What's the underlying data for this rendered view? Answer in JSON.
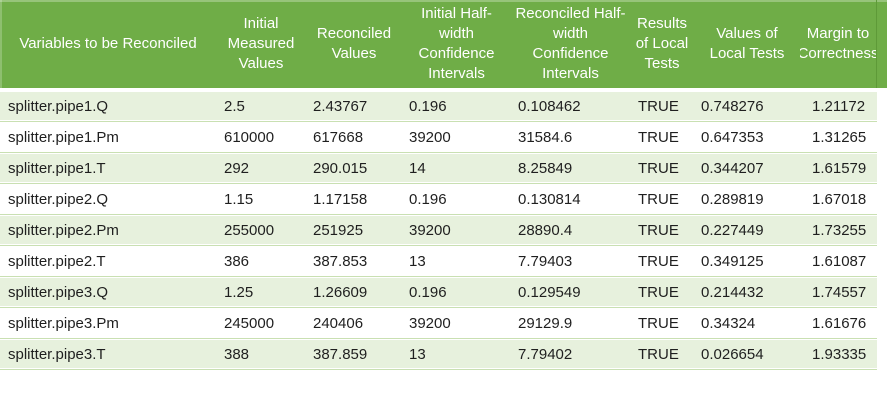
{
  "table": {
    "columns": [
      "Variables to be Reconciled",
      "Initial Measured Values",
      "Reconciled Values",
      "Initial Half-width Confidence Intervals",
      "Reconciled Half-width Confidence Intervals",
      "Results of Local Tests",
      "Values of Local Tests",
      "Margin to Correctness"
    ],
    "rows": [
      [
        "splitter.pipe1.Q",
        "2.5",
        "2.43767",
        "0.196",
        "0.108462",
        "TRUE",
        "0.748276",
        "1.21172"
      ],
      [
        "splitter.pipe1.Pm",
        "610000",
        "617668",
        "39200",
        "31584.6",
        "TRUE",
        "0.647353",
        "1.31265"
      ],
      [
        "splitter.pipe1.T",
        "292",
        "290.015",
        "14",
        "8.25849",
        "TRUE",
        "0.344207",
        "1.61579"
      ],
      [
        "splitter.pipe2.Q",
        "1.15",
        "1.17158",
        "0.196",
        "0.130814",
        "TRUE",
        "0.289819",
        "1.67018"
      ],
      [
        "splitter.pipe2.Pm",
        "255000",
        "251925",
        "39200",
        "28890.4",
        "TRUE",
        "0.227449",
        "1.73255"
      ],
      [
        "splitter.pipe2.T",
        "386",
        "387.853",
        "13",
        "7.79403",
        "TRUE",
        "0.349125",
        "1.61087"
      ],
      [
        "splitter.pipe3.Q",
        "1.25",
        "1.26609",
        "0.196",
        "0.129549",
        "TRUE",
        "0.214432",
        "1.74557"
      ],
      [
        "splitter.pipe3.Pm",
        "245000",
        "240406",
        "39200",
        "29129.9",
        "TRUE",
        "0.34324",
        "1.61676"
      ],
      [
        "splitter.pipe3.T",
        "388",
        "387.859",
        "13",
        "7.79402",
        "TRUE",
        "0.026654",
        "1.93335"
      ]
    ]
  },
  "chart_data": {
    "type": "table",
    "columns": [
      "Variables to be Reconciled",
      "Initial Measured Values",
      "Reconciled Values",
      "Initial Half-width Confidence Intervals",
      "Reconciled Half-width Confidence Intervals",
      "Results of Local Tests",
      "Values of Local Tests",
      "Margin to Correctness"
    ],
    "rows": [
      [
        "splitter.pipe1.Q",
        2.5,
        2.43767,
        0.196,
        0.108462,
        "TRUE",
        0.748276,
        1.21172
      ],
      [
        "splitter.pipe1.Pm",
        610000,
        617668,
        39200,
        31584.6,
        "TRUE",
        0.647353,
        1.31265
      ],
      [
        "splitter.pipe1.T",
        292,
        290.015,
        14,
        8.25849,
        "TRUE",
        0.344207,
        1.61579
      ],
      [
        "splitter.pipe2.Q",
        1.15,
        1.17158,
        0.196,
        0.130814,
        "TRUE",
        0.289819,
        1.67018
      ],
      [
        "splitter.pipe2.Pm",
        255000,
        251925,
        39200,
        28890.4,
        "TRUE",
        0.227449,
        1.73255
      ],
      [
        "splitter.pipe2.T",
        386,
        387.853,
        13,
        7.79403,
        "TRUE",
        0.349125,
        1.61087
      ],
      [
        "splitter.pipe3.Q",
        1.25,
        1.26609,
        0.196,
        0.129549,
        "TRUE",
        0.214432,
        1.74557
      ],
      [
        "splitter.pipe3.Pm",
        245000,
        240406,
        39200,
        29129.9,
        "TRUE",
        0.34324,
        1.61676
      ],
      [
        "splitter.pipe3.T",
        388,
        387.859,
        13,
        7.79402,
        "TRUE",
        0.026654,
        1.93335
      ]
    ]
  },
  "colors": {
    "header_bg": "#6FAD47",
    "header_text": "#FFFFFF",
    "band_green": "#E7F1DD",
    "band_white": "#FFFFFF",
    "row_line": "#C9E0B2",
    "header_divider": "#5E9A38",
    "cell_text": "#1F1F1F"
  }
}
